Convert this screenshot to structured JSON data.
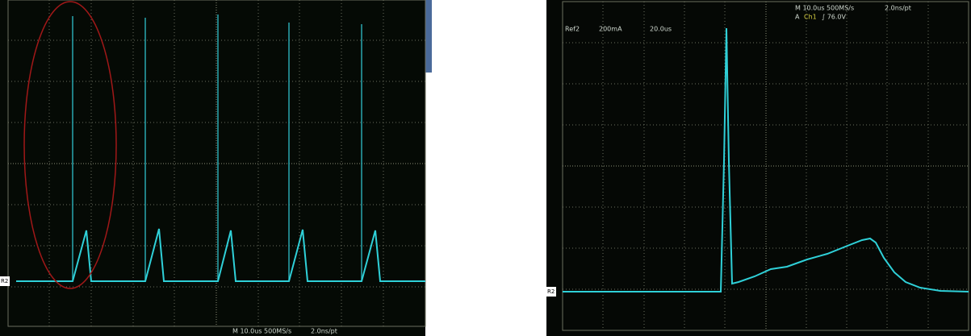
{
  "left_scope": {
    "marker": "R2",
    "status": "M 10.0us 500MS/s",
    "resolution": "2.0ns/pt"
  },
  "right_scope": {
    "status": "M 10.0us 500MS/s",
    "resolution": "2.0ns/pt",
    "trigger_source": "A",
    "trigger_channel": "Ch1",
    "trigger_level": "∫ 76.0V",
    "ref_label": "Ref2",
    "ref_scale": "200mA",
    "ref_time": "20.0us",
    "marker": "R2"
  }
}
